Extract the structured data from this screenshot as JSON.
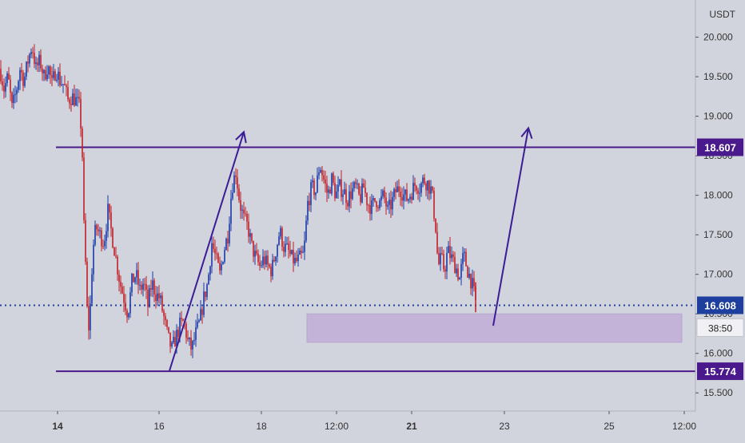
{
  "chart_data": {
    "type": "candlestick",
    "currency_label": "USDT",
    "y_ticks": [
      15.5,
      16.0,
      16.5,
      17.0,
      17.5,
      18.0,
      18.5,
      19.0,
      19.5,
      20.0
    ],
    "y_tick_labels": [
      "15.500",
      "16.000",
      "16.500",
      "17.000",
      "17.500",
      "18.000",
      "18.500",
      "19.000",
      "19.500",
      "20.000"
    ],
    "ylim": [
      15.27,
      20.47
    ],
    "x_tick_labels": [
      "14",
      "16",
      "18",
      "12:00",
      "21",
      "23",
      "25",
      "12:00"
    ],
    "bold_x_ticks": [
      "14",
      "21"
    ],
    "resistance_level": 18.607,
    "resistance_label": "18.607",
    "support_level": 15.774,
    "support_label": "15.774",
    "current_price": 16.608,
    "current_price_label": "16.608",
    "countdown": "38:50",
    "demand_zone": {
      "low": 16.14,
      "high": 16.5
    },
    "price_path": [
      [
        0,
        19.6
      ],
      [
        5,
        19.35
      ],
      [
        10,
        19.5
      ],
      [
        15,
        19.1
      ],
      [
        20,
        19.3
      ],
      [
        25,
        19.6
      ],
      [
        30,
        19.45
      ],
      [
        35,
        19.7
      ],
      [
        40,
        19.9
      ],
      [
        45,
        19.6
      ],
      [
        50,
        19.7
      ],
      [
        55,
        19.5
      ],
      [
        60,
        19.65
      ],
      [
        65,
        19.4
      ],
      [
        70,
        19.6
      ],
      [
        75,
        19.45
      ],
      [
        80,
        19.4
      ],
      [
        85,
        19.2
      ],
      [
        90,
        19.25
      ],
      [
        95,
        19.2
      ],
      [
        100,
        19.1
      ],
      [
        103,
        18.5
      ],
      [
        105,
        17.6
      ],
      [
        108,
        16.9
      ],
      [
        110,
        16.2
      ],
      [
        113,
        16.6
      ],
      [
        116,
        17.3
      ],
      [
        120,
        17.6
      ],
      [
        125,
        17.5
      ],
      [
        130,
        17.4
      ],
      [
        135,
        17.8
      ],
      [
        140,
        17.5
      ],
      [
        145,
        17.2
      ],
      [
        150,
        16.9
      ],
      [
        155,
        16.7
      ],
      [
        160,
        16.5
      ],
      [
        165,
        16.9
      ],
      [
        170,
        17.0
      ],
      [
        175,
        16.8
      ],
      [
        180,
        16.9
      ],
      [
        185,
        16.6
      ],
      [
        190,
        16.9
      ],
      [
        195,
        16.75
      ],
      [
        200,
        16.7
      ],
      [
        205,
        16.45
      ],
      [
        210,
        16.2
      ],
      [
        215,
        16.05
      ],
      [
        220,
        16.2
      ],
      [
        225,
        16.35
      ],
      [
        230,
        16.4
      ],
      [
        235,
        16.15
      ],
      [
        240,
        16.05
      ],
      [
        245,
        16.25
      ],
      [
        250,
        16.4
      ],
      [
        255,
        16.7
      ],
      [
        260,
        16.9
      ],
      [
        265,
        17.4
      ],
      [
        270,
        17.2
      ],
      [
        275,
        17.0
      ],
      [
        280,
        17.3
      ],
      [
        285,
        17.5
      ],
      [
        290,
        18.1
      ],
      [
        295,
        18.3
      ],
      [
        300,
        17.9
      ],
      [
        305,
        17.7
      ],
      [
        310,
        17.6
      ],
      [
        315,
        17.35
      ],
      [
        320,
        17.2
      ],
      [
        325,
        17.1
      ],
      [
        330,
        17.2
      ],
      [
        335,
        17.1
      ],
      [
        340,
        17.05
      ],
      [
        345,
        17.3
      ],
      [
        350,
        17.55
      ],
      [
        355,
        17.35
      ],
      [
        360,
        17.3
      ],
      [
        365,
        17.2
      ],
      [
        370,
        17.15
      ],
      [
        375,
        17.2
      ],
      [
        380,
        17.25
      ],
      [
        385,
        17.9
      ],
      [
        390,
        18.1
      ],
      [
        395,
        18.05
      ],
      [
        400,
        18.4
      ],
      [
        405,
        18.2
      ],
      [
        410,
        18.0
      ],
      [
        415,
        18.2
      ],
      [
        420,
        18.0
      ],
      [
        425,
        18.1
      ],
      [
        430,
        18.05
      ],
      [
        435,
        17.95
      ],
      [
        440,
        18.05
      ],
      [
        445,
        18.1
      ],
      [
        450,
        17.95
      ],
      [
        455,
        18.1
      ],
      [
        460,
        17.9
      ],
      [
        465,
        17.85
      ],
      [
        470,
        17.95
      ],
      [
        475,
        17.9
      ],
      [
        480,
        18.0
      ],
      [
        485,
        17.8
      ],
      [
        490,
        17.9
      ],
      [
        495,
        18.05
      ],
      [
        500,
        18.1
      ],
      [
        505,
        18.0
      ],
      [
        510,
        17.95
      ],
      [
        515,
        18.05
      ],
      [
        520,
        18.15
      ],
      [
        525,
        18.1
      ],
      [
        530,
        18.2
      ],
      [
        535,
        18.15
      ],
      [
        540,
        18.05
      ],
      [
        545,
        17.6
      ],
      [
        548,
        17.1
      ],
      [
        552,
        17.2
      ],
      [
        556,
        17.05
      ],
      [
        560,
        17.3
      ],
      [
        565,
        17.2
      ],
      [
        570,
        17.1
      ],
      [
        575,
        16.95
      ],
      [
        580,
        17.25
      ],
      [
        585,
        17.05
      ],
      [
        590,
        16.9
      ],
      [
        595,
        16.65
      ]
    ]
  }
}
